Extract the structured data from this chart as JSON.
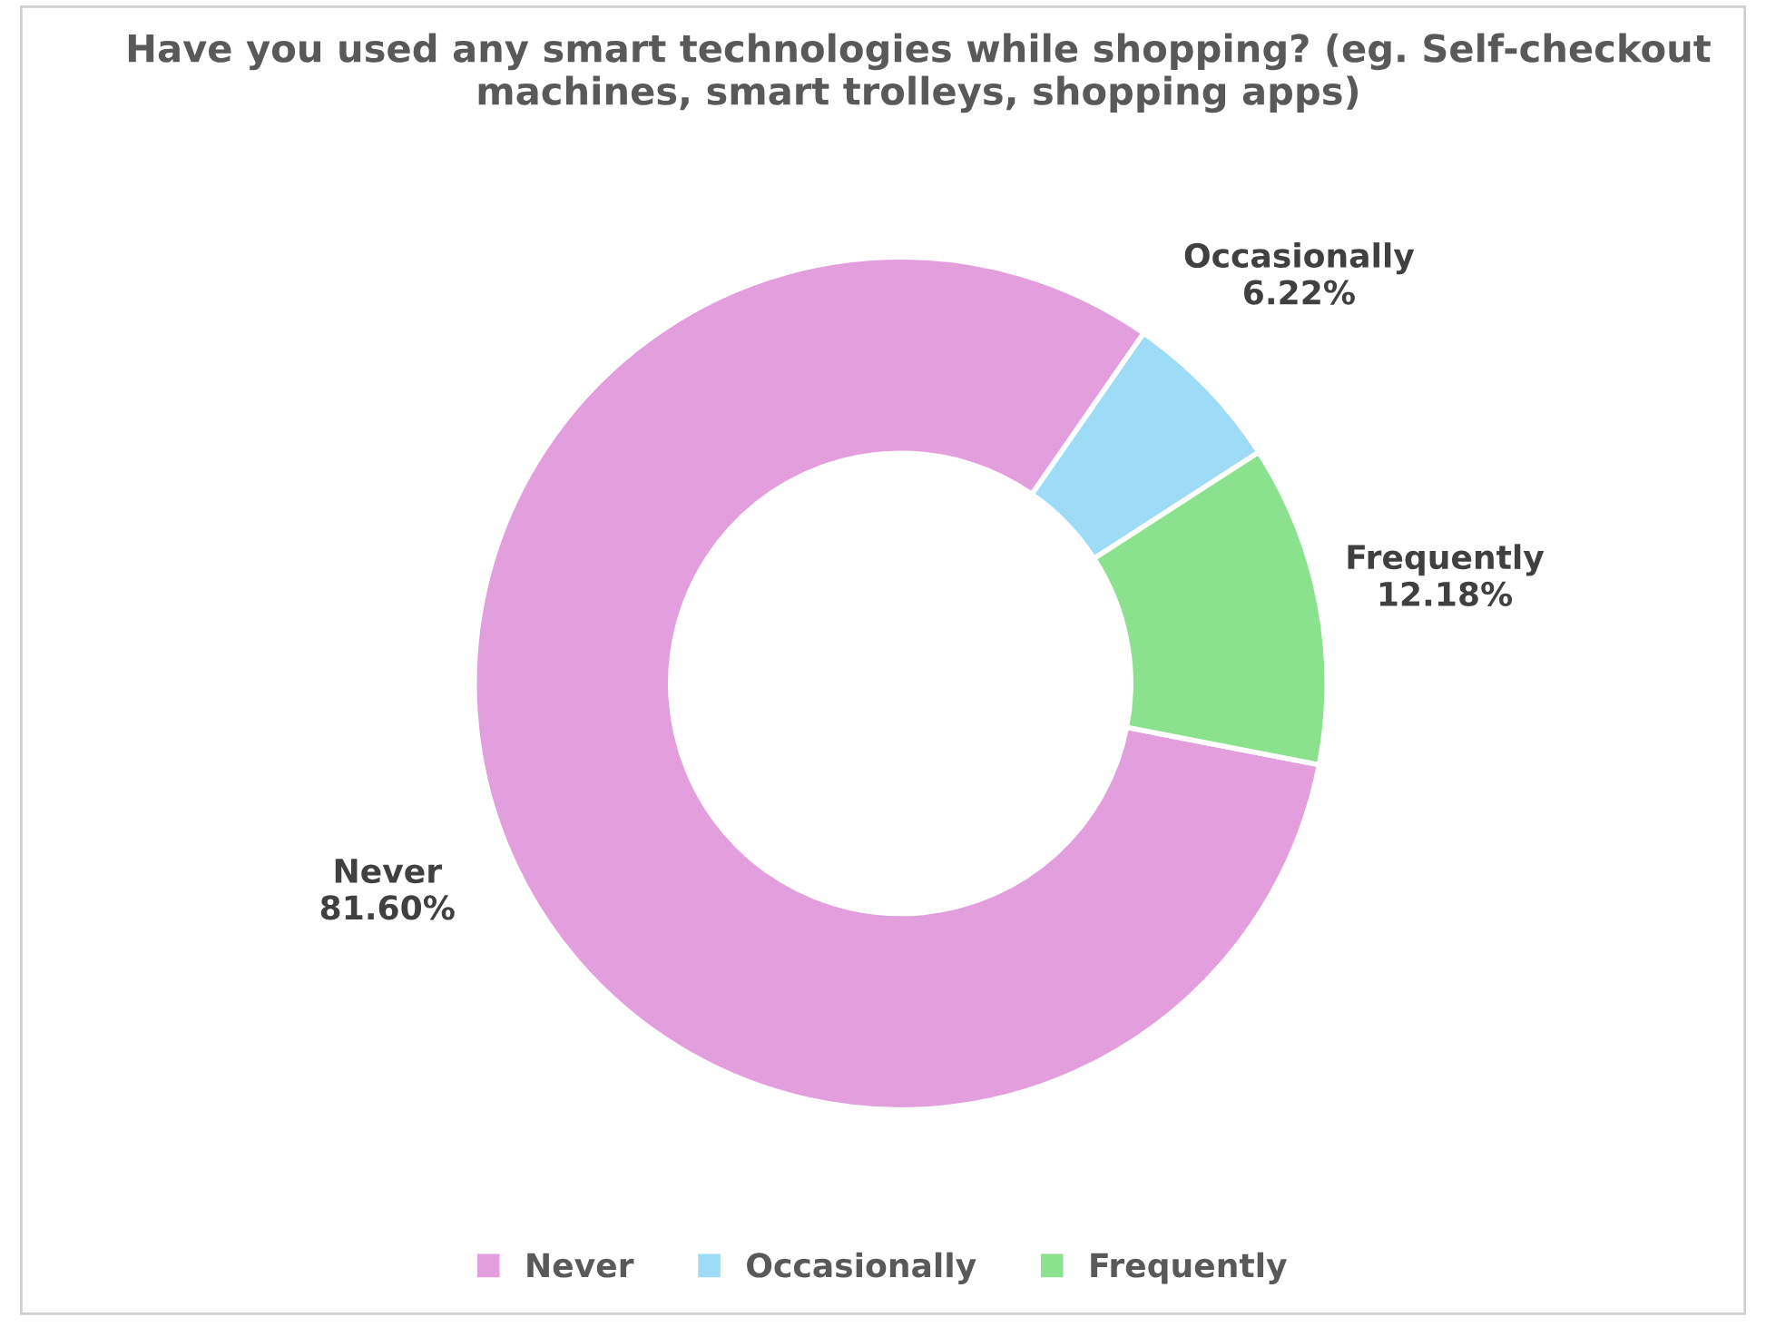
{
  "chart_data": {
    "type": "donut",
    "title": "Have you used any smart technologies while shopping? (eg. Self-checkout machines, smart trolleys, shopping apps)",
    "categories": [
      "Never",
      "Occasionally",
      "Frequently"
    ],
    "values": [
      81.6,
      6.22,
      12.18
    ],
    "colors": [
      "#e39fdd",
      "#9ddbf6",
      "#8ae28f"
    ],
    "value_labels": [
      "81.60%",
      "6.22%",
      "12.18%"
    ],
    "legend": "bottom"
  }
}
